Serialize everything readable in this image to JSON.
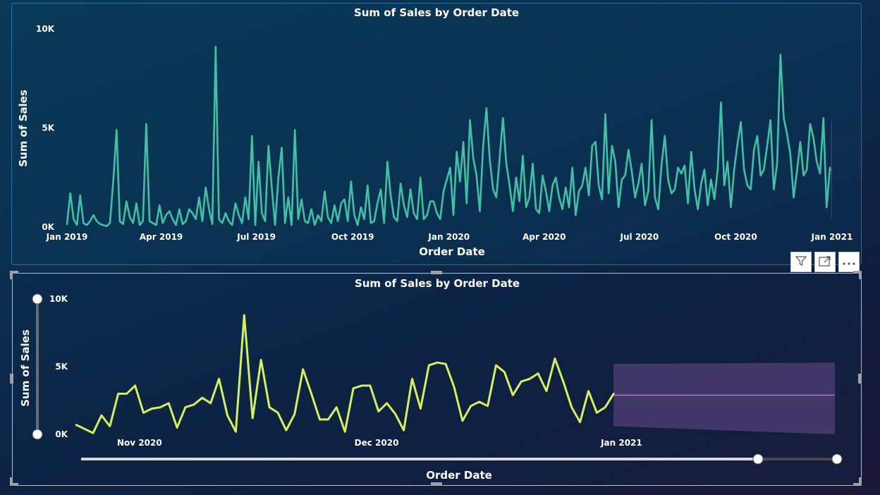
{
  "colors": {
    "top_line": "#3ec1a4",
    "bottom_line": "#d6f05a",
    "forecast_fill": "#6a4c8c",
    "forecast_line": "#b58fcf"
  },
  "toolbar": {
    "filter_icon": "filter-icon",
    "focus_icon": "focus-mode-icon",
    "more_icon": "more-options-icon"
  },
  "chart_data": [
    {
      "type": "line",
      "title": "Sum of Sales by Order Date",
      "xlabel": "Order Date",
      "ylabel": "Sum of Sales",
      "x_ticks": [
        "Jan 2019",
        "Apr 2019",
        "Jul 2019",
        "Oct 2019",
        "Jan 2020",
        "Apr 2020",
        "Jul 2020",
        "Oct 2020",
        "Jan 2021"
      ],
      "y_ticks": [
        "0K",
        "5K",
        "10K"
      ],
      "xlim": [
        "2019-01-01",
        "2021-01-01"
      ],
      "ylim": [
        0,
        10000
      ],
      "grid": false,
      "series": [
        {
          "x_start": "2019-01-01",
          "x_end": "2020-12-30",
          "values": [
            150,
            1700,
            400,
            100,
            1600,
            200,
            100,
            300,
            600,
            300,
            150,
            100,
            50,
            200,
            2300,
            4900,
            300,
            150,
            1300,
            500,
            200,
            1200,
            100,
            300,
            5200,
            300,
            200,
            100,
            1100,
            200,
            600,
            800,
            400,
            100,
            900,
            150,
            300,
            900,
            700,
            400,
            1500,
            300,
            2000,
            900,
            150,
            9100,
            400,
            200,
            700,
            300,
            100,
            1200,
            600,
            200,
            1500,
            400,
            4600,
            100,
            3300,
            700,
            300,
            4100,
            2000,
            100,
            2500,
            4000,
            200,
            1500,
            100,
            4900,
            400,
            1400,
            300,
            200,
            900,
            100,
            600,
            300,
            1800,
            500,
            200,
            1100,
            300,
            1200,
            1400,
            300,
            2300,
            600,
            100,
            1000,
            400,
            2100,
            200,
            300,
            1200,
            1900,
            200,
            3300,
            1600,
            500,
            300,
            2200,
            1100,
            500,
            1900,
            700,
            400,
            2500,
            400,
            600,
            1300,
            1300,
            700,
            400,
            1800,
            2400,
            3000,
            600,
            3800,
            2300,
            4300,
            1200,
            5400,
            3500,
            2600,
            800,
            4100,
            6000,
            3400,
            1900,
            1500,
            3500,
            5500,
            3200,
            2100,
            800,
            2500,
            1300,
            3600,
            1000,
            1500,
            3200,
            900,
            700,
            2600,
            1800,
            800,
            2100,
            2500,
            1500,
            900,
            2000,
            1000,
            3000,
            600,
            1800,
            2100,
            3000,
            1600,
            4100,
            4300,
            2100,
            1400,
            5700,
            1700,
            4100,
            3300,
            1000,
            2400,
            2600,
            3900,
            2800,
            1500,
            2200,
            3200,
            1100,
            1800,
            5400,
            1500,
            900,
            3100,
            4600,
            2400,
            1700,
            1900,
            3000,
            2700,
            3100,
            1200,
            3800,
            1900,
            900,
            2200,
            2900,
            1100,
            2400,
            1400,
            2900,
            6300,
            2100,
            3300,
            1000,
            2900,
            4200,
            5300,
            2900,
            2100,
            1900,
            3900,
            4600,
            2600,
            2900,
            4100,
            5400,
            1900,
            3200,
            8700,
            5500,
            4700,
            3700,
            1500,
            2800,
            4300,
            2600,
            2900,
            5200,
            4500,
            3300,
            2700,
            5500,
            1000,
            3000
          ]
        }
      ],
      "forecast": {
        "x_start": "2020-12-31",
        "x_end": "2021-01-01",
        "center": 2900,
        "lower": [
          400,
          500
        ],
        "upper": [
          5300,
          5500
        ]
      }
    },
    {
      "type": "line",
      "title": "Sum of Sales by Order Date",
      "xlabel": "Order Date",
      "ylabel": "Sum of Sales",
      "x_ticks": [
        "Nov 2020",
        "Dec 2020",
        "Jan 2021"
      ],
      "y_ticks": [
        "0K",
        "5K",
        "10K"
      ],
      "xlim": [
        "2020-10-23",
        "2021-01-28"
      ],
      "ylim": [
        0,
        10000
      ],
      "grid": false,
      "series": [
        {
          "x_start": "2020-10-24",
          "x_end": "2020-12-31",
          "values": [
            700,
            400,
            100,
            1400,
            600,
            3000,
            3000,
            3600,
            1600,
            1900,
            2000,
            2300,
            500,
            2000,
            2200,
            2700,
            2300,
            4100,
            1400,
            200,
            8800,
            1200,
            5500,
            2000,
            1600,
            300,
            1500,
            4800,
            3000,
            1100,
            1100,
            2000,
            200,
            3400,
            3600,
            3600,
            1700,
            2300,
            1500,
            300,
            4100,
            1900,
            5100,
            5300,
            5200,
            3500,
            1000,
            2100,
            2400,
            2100,
            5100,
            4600,
            2900,
            3900,
            4100,
            4500,
            3200,
            5600,
            3900,
            2000,
            900,
            3200,
            1600,
            2000,
            3000
          ]
        }
      ],
      "forecast": {
        "x_start": "2020-12-31",
        "x_end": "2021-01-28",
        "center": 2900,
        "lower": [
          600,
          0
        ],
        "upper": [
          5200,
          5300
        ]
      }
    }
  ]
}
